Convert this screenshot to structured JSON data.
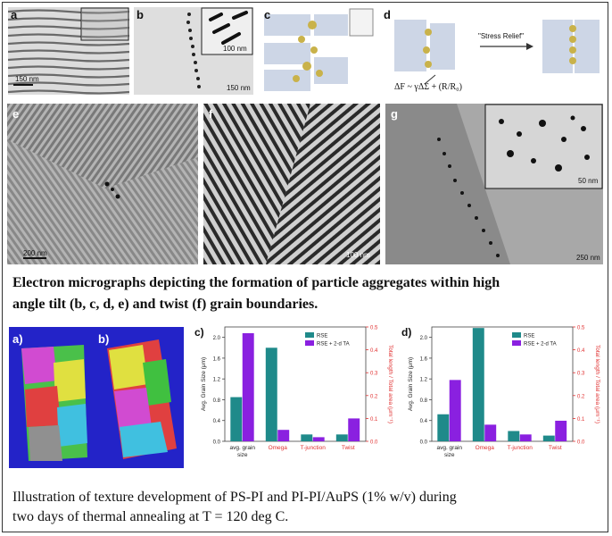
{
  "panels": {
    "a": {
      "label": "a",
      "scale": "150 nm"
    },
    "b": {
      "label": "b",
      "scale": "150 nm",
      "inset_scale": "100 nm"
    },
    "c": {
      "label": "c"
    },
    "d": {
      "label": "d",
      "stress_label": "\"Stress Relief\"",
      "equation": "ΔF ~ γΔΣ + (R/R₀)"
    },
    "e": {
      "label": "e",
      "scale": "200 nm"
    },
    "f": {
      "label": "f",
      "scale": "100 nm"
    },
    "g": {
      "label": "g",
      "scale": "250 nm",
      "inset_scale": "50 nm"
    }
  },
  "caption_top": {
    "line1": "Electron micrographs depicting the  formation of particle aggregates within high",
    "line2": "angle tilt (b, c, d, e) and twist (f) grain boundaries."
  },
  "maps": {
    "a": "a)",
    "b": "b)"
  },
  "chart_data": [
    {
      "type": "bar",
      "panel_label": "c)",
      "categories": [
        "avg. grain size",
        "Omega",
        "T-junction",
        "Twist"
      ],
      "category_colors": [
        "#222222",
        "#e03030",
        "#e03030",
        "#e03030"
      ],
      "series": [
        {
          "name": "RSE",
          "color": "#1f8a8a",
          "values": [
            0.85,
            1.8,
            0.03,
            0.03
          ]
        },
        {
          "name": "RSE + 2-d TA",
          "color": "#8a20e0",
          "values": [
            2.08,
            0.22,
            0.018,
            0.1
          ]
        }
      ],
      "secondary_series_index": [
        false,
        false,
        true,
        true
      ],
      "ylabel": "Avg. Grain Size (μm)",
      "y2label": "Total length / Total area (μm⁻¹)",
      "ylim": [
        0,
        2.2
      ],
      "y2lim": [
        0,
        0.5
      ],
      "yticks": [
        "0.0",
        "0.4",
        "0.8",
        "1.2",
        "1.6",
        "2.0"
      ],
      "y2ticks": [
        "0.0",
        "0.1",
        "0.2",
        "0.3",
        "0.4",
        "0.5"
      ]
    },
    {
      "type": "bar",
      "panel_label": "d)",
      "categories": [
        "avg. grain size",
        "Omega",
        "T-junction",
        "Twist"
      ],
      "category_colors": [
        "#222222",
        "#e03030",
        "#e03030",
        "#e03030"
      ],
      "series": [
        {
          "name": "RSE",
          "color": "#1f8a8a",
          "values": [
            0.52,
            2.18,
            0.045,
            0.025
          ]
        },
        {
          "name": "RSE + 2-d TA",
          "color": "#8a20e0",
          "values": [
            1.18,
            0.32,
            0.03,
            0.09
          ]
        }
      ],
      "secondary_series_index": [
        false,
        false,
        true,
        true
      ],
      "ylabel": "Avg. Grain Size (μm)",
      "y2label": "Total length / Total area (μm⁻¹)",
      "ylim": [
        0,
        2.2
      ],
      "y2lim": [
        0,
        0.5
      ],
      "yticks": [
        "0.0",
        "0.4",
        "0.8",
        "1.2",
        "1.6",
        "2.0"
      ],
      "y2ticks": [
        "0.0",
        "0.1",
        "0.2",
        "0.3",
        "0.4",
        "0.5"
      ]
    }
  ],
  "caption_bottom": {
    "line1": "Illustration of texture development of PS-PI and PI-PI/AuPS (1% w/v) during",
    "line2": "two days of thermal annealing at T = 120 deg C."
  }
}
